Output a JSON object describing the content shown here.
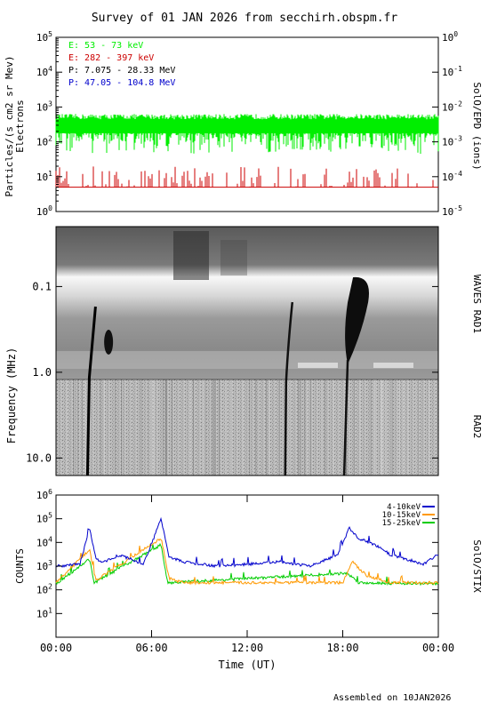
{
  "title": "Survey of 01 JAN 2026 from secchirh.obspm.fr",
  "footer": "Assembled on  10JAN2026",
  "colors": {
    "electrons_low": "#00ee00",
    "electrons_high": "#cc0000",
    "protons_low": "#000000",
    "protons_high": "#0000cc",
    "stix_low": "#0000cc",
    "stix_mid": "#ff9900",
    "stix_high": "#00cc00"
  },
  "chart_data": [
    {
      "type": "line",
      "panel": "SolO/EPD",
      "ylabel": "Particles/(s cm2 sr Mev)",
      "ylabel2": "Electrons",
      "right_label": "SolO/EPD (ions)",
      "yscale": "log",
      "ylim": [
        1,
        100000
      ],
      "y_ticks": [
        "10^0",
        "10^1",
        "10^2",
        "10^3",
        "10^4",
        "10^5"
      ],
      "y2lim": [
        1e-05,
        1
      ],
      "y2_ticks": [
        "10^-5",
        "10^-4",
        "10^-3",
        "10^-2",
        "10^-1",
        "10^0"
      ],
      "legend": [
        {
          "text": "E: 53 - 73 keV",
          "color": "#00ee00"
        },
        {
          "text": "E: 282 - 397 keV",
          "color": "#cc0000"
        },
        {
          "text": "P: 7.075 - 28.33 MeV",
          "color": "#000000"
        },
        {
          "text": "P: 47.05 - 104.8 MeV",
          "color": "#0000cc"
        }
      ],
      "legend_position": "top-left",
      "series": [
        {
          "name": "E: 53 - 73 keV",
          "level": 250,
          "range": [
            60,
            700
          ]
        },
        {
          "name": "E: 282 - 397 keV",
          "level": 5,
          "range": [
            5,
            20
          ]
        }
      ]
    },
    {
      "type": "heatmap",
      "panel": "WAVES",
      "ylabel": "Frequency (MHz)",
      "yscale": "log",
      "ylim": [
        0.02,
        16
      ],
      "y_ticks": [
        "0.1",
        "1.0",
        "10.0"
      ],
      "right_label_top": "WAVES RAD1",
      "right_label_bottom": "RAD2",
      "bursts_hours": [
        2.2,
        3.3,
        14.5,
        18.2
      ]
    },
    {
      "type": "line",
      "panel": "SolO/STIX",
      "ylabel": "COUNTS",
      "right_label": "SolO/STIX",
      "yscale": "log",
      "ylim": [
        1,
        1000000
      ],
      "y_ticks": [
        "10^1",
        "10^2",
        "10^3",
        "10^4",
        "10^5",
        "10^6"
      ],
      "legend": [
        {
          "text": "4-10keV",
          "color": "#0000cc"
        },
        {
          "text": "10-15keV",
          "color": "#ff9900"
        },
        {
          "text": "15-25keV",
          "color": "#00cc00"
        }
      ],
      "legend_position": "top-right",
      "x_ticks": [
        "00:00",
        "06:00",
        "12:00",
        "18:00",
        "00:00"
      ],
      "xlabel": "Time (UT)",
      "xlim_hours": [
        0,
        24
      ],
      "series": [
        {
          "name": "4-10keV",
          "x": [
            0,
            1.5,
            2.1,
            2.5,
            3.0,
            4.0,
            5.5,
            6.6,
            7.1,
            8.0,
            10,
            12,
            14,
            16,
            17.7,
            18.4,
            19,
            20,
            21,
            22,
            23,
            24
          ],
          "y": [
            1000,
            1200,
            40000,
            2000,
            1500,
            3000,
            1200,
            100000,
            2500,
            1500,
            1000,
            1200,
            1500,
            1000,
            3000,
            40000,
            15000,
            8000,
            3000,
            2000,
            1200,
            3000
          ]
        },
        {
          "name": "10-15keV",
          "x": [
            0,
            2.1,
            2.5,
            6.6,
            7.1,
            8,
            18,
            18.6,
            19.5,
            21,
            24
          ],
          "y": [
            200,
            5000,
            250,
            15000,
            300,
            200,
            200,
            1500,
            400,
            200,
            200
          ]
        },
        {
          "name": "15-25keV",
          "x": [
            0,
            2.1,
            2.4,
            6.6,
            7.0,
            18.3,
            19,
            24
          ],
          "y": [
            180,
            2000,
            200,
            8000,
            200,
            500,
            200,
            180
          ]
        }
      ]
    }
  ]
}
